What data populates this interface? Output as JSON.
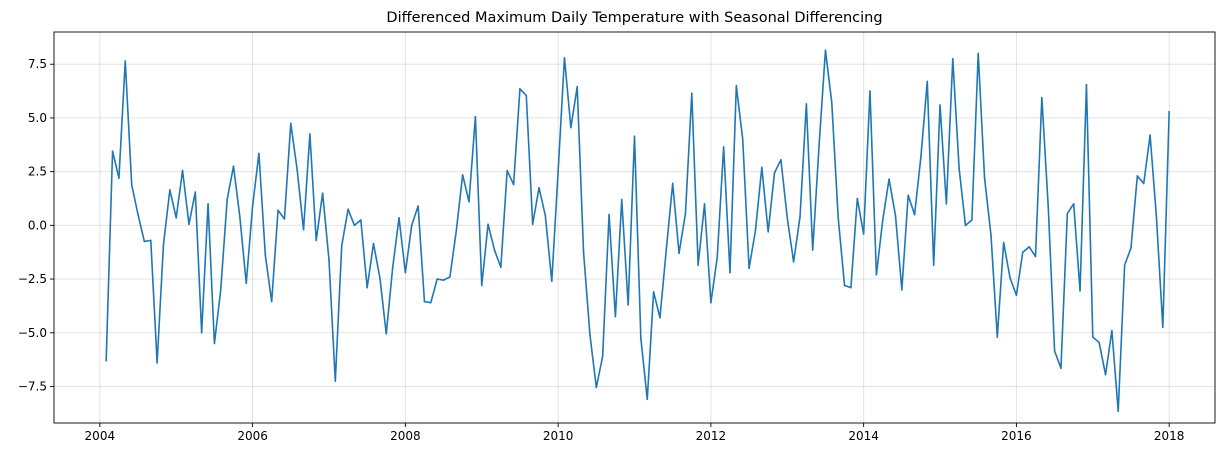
{
  "chart_data": {
    "type": "line",
    "title": "Differenced Maximum Daily Temperature with Seasonal Differencing",
    "xlabel": "",
    "ylabel": "",
    "xlim": [
      2003.4,
      2018.6
    ],
    "ylim": [
      -9.2,
      9.0
    ],
    "grid": true,
    "line_color": "#1f77b4",
    "xticks": [
      {
        "value": 2004,
        "label": "2004"
      },
      {
        "value": 2006,
        "label": "2006"
      },
      {
        "value": 2008,
        "label": "2008"
      },
      {
        "value": 2010,
        "label": "2010"
      },
      {
        "value": 2012,
        "label": "2012"
      },
      {
        "value": 2014,
        "label": "2014"
      },
      {
        "value": 2016,
        "label": "2016"
      },
      {
        "value": 2018,
        "label": "2018"
      }
    ],
    "yticks": [
      {
        "value": 7.5,
        "label": "7.5"
      },
      {
        "value": 5.0,
        "label": "5.0"
      },
      {
        "value": 2.5,
        "label": "2.5"
      },
      {
        "value": 0.0,
        "label": "0.0"
      },
      {
        "value": -2.5,
        "label": "−2.5"
      },
      {
        "value": -5.0,
        "label": "−5.0"
      },
      {
        "value": -7.5,
        "label": "−7.5"
      }
    ],
    "series": [
      {
        "x": [
          2004.083,
          2004.167,
          2004.25,
          2004.333,
          2004.417,
          2004.5,
          2004.583,
          2004.667,
          2004.75,
          2004.833,
          2004.917,
          2005.0,
          2005.083,
          2005.167,
          2005.25,
          2005.333,
          2005.417,
          2005.5,
          2005.583,
          2005.667,
          2005.75,
          2005.833,
          2005.917,
          2006.0,
          2006.083,
          2006.167,
          2006.25,
          2006.333,
          2006.417,
          2006.5,
          2006.583,
          2006.667,
          2006.75,
          2006.833,
          2006.917,
          2007.0,
          2007.083,
          2007.167,
          2007.25,
          2007.333,
          2007.417,
          2007.5,
          2007.583,
          2007.667,
          2007.75,
          2007.833,
          2007.917,
          2008.0,
          2008.083,
          2008.167,
          2008.25,
          2008.333,
          2008.417,
          2008.5,
          2008.583,
          2008.667,
          2008.75,
          2008.833,
          2008.917,
          2009.0,
          2009.083,
          2009.167,
          2009.25,
          2009.333,
          2009.417,
          2009.5,
          2009.583,
          2009.667,
          2009.75,
          2009.833,
          2009.917,
          2010.0,
          2010.083,
          2010.167,
          2010.25,
          2010.333,
          2010.417,
          2010.5,
          2010.583,
          2010.667,
          2010.75,
          2010.833,
          2010.917,
          2011.0,
          2011.083,
          2011.167,
          2011.25,
          2011.333,
          2011.417,
          2011.5,
          2011.583,
          2011.667,
          2011.75,
          2011.833,
          2011.917,
          2012.0,
          2012.083,
          2012.167,
          2012.25,
          2012.333,
          2012.417,
          2012.5,
          2012.583,
          2012.667,
          2012.75,
          2012.833,
          2012.917,
          2013.0,
          2013.083,
          2013.167,
          2013.25,
          2013.333,
          2013.417,
          2013.5,
          2013.583,
          2013.667,
          2013.75,
          2013.833,
          2013.917,
          2014.0,
          2014.083,
          2014.167,
          2014.25,
          2014.333,
          2014.417,
          2014.5,
          2014.583,
          2014.667,
          2014.75,
          2014.833,
          2014.917,
          2015.0,
          2015.083,
          2015.167,
          2015.25,
          2015.333,
          2015.417,
          2015.5,
          2015.583,
          2015.667,
          2015.75,
          2015.833,
          2015.917,
          2016.0,
          2016.083,
          2016.167,
          2016.25,
          2016.333,
          2016.417,
          2016.5,
          2016.583,
          2016.667,
          2016.75,
          2016.833,
          2016.917,
          2017.0,
          2017.083,
          2017.167,
          2017.25,
          2017.333,
          2017.417,
          2017.5,
          2017.583,
          2017.667,
          2017.75,
          2017.833,
          2017.917,
          2018.0
        ],
        "y": [
          -6.3,
          3.45,
          2.2,
          7.65,
          1.9,
          0.5,
          -0.75,
          -0.7,
          -6.4,
          -0.9,
          1.65,
          0.35,
          2.55,
          0.05,
          1.55,
          -5.0,
          1.0,
          -5.5,
          -3.0,
          1.2,
          2.75,
          0.4,
          -2.7,
          0.9,
          3.35,
          -1.4,
          -3.55,
          0.7,
          0.3,
          4.75,
          2.6,
          -0.2,
          4.25,
          -0.7,
          1.5,
          -1.6,
          -7.25,
          -0.95,
          0.75,
          0.0,
          0.25,
          -2.9,
          -0.85,
          -2.45,
          -5.05,
          -2.0,
          0.35,
          -2.2,
          0.0,
          0.9,
          -3.55,
          -3.6,
          -2.5,
          -2.55,
          -2.4,
          -0.25,
          2.35,
          1.1,
          5.05,
          -2.8,
          0.05,
          -1.15,
          -1.95,
          2.55,
          1.9,
          6.35,
          6.05,
          0.05,
          1.75,
          0.45,
          -2.6,
          2.5,
          7.8,
          4.55,
          6.45,
          -1.25,
          -5.1,
          -7.55,
          -6.1,
          0.5,
          -4.25,
          1.2,
          -3.7,
          4.15,
          -5.25,
          -8.1,
          -3.1,
          -4.3,
          -1.1,
          1.95,
          -1.3,
          0.55,
          6.15,
          -1.85,
          1.0,
          -3.6,
          -1.5,
          3.65,
          -2.2,
          6.5,
          4.0,
          -2.0,
          -0.25,
          2.7,
          -0.3,
          2.45,
          3.05,
          0.35,
          -1.7,
          0.4,
          5.65,
          -1.15,
          3.75,
          8.15,
          5.7,
          0.35,
          -2.8,
          -2.9,
          1.25,
          -0.4,
          6.25,
          -2.3,
          0.25,
          2.15,
          0.45,
          -3.0,
          1.4,
          0.5,
          3.2,
          6.7,
          -1.85,
          5.6,
          1.0,
          7.75,
          2.65,
          0.0,
          0.25,
          8.0,
          2.2,
          -0.45,
          -5.2,
          -0.8,
          -2.45,
          -3.25,
          -1.25,
          -1.0,
          -1.45,
          5.95,
          0.85,
          -5.85,
          -6.65,
          0.55,
          1.0,
          -3.05,
          6.55,
          -5.2,
          -5.45,
          -6.95,
          -4.9,
          -8.65,
          -1.85,
          -1.05,
          2.3,
          1.95,
          4.2,
          0.4,
          -4.75,
          5.3
        ]
      }
    ]
  }
}
